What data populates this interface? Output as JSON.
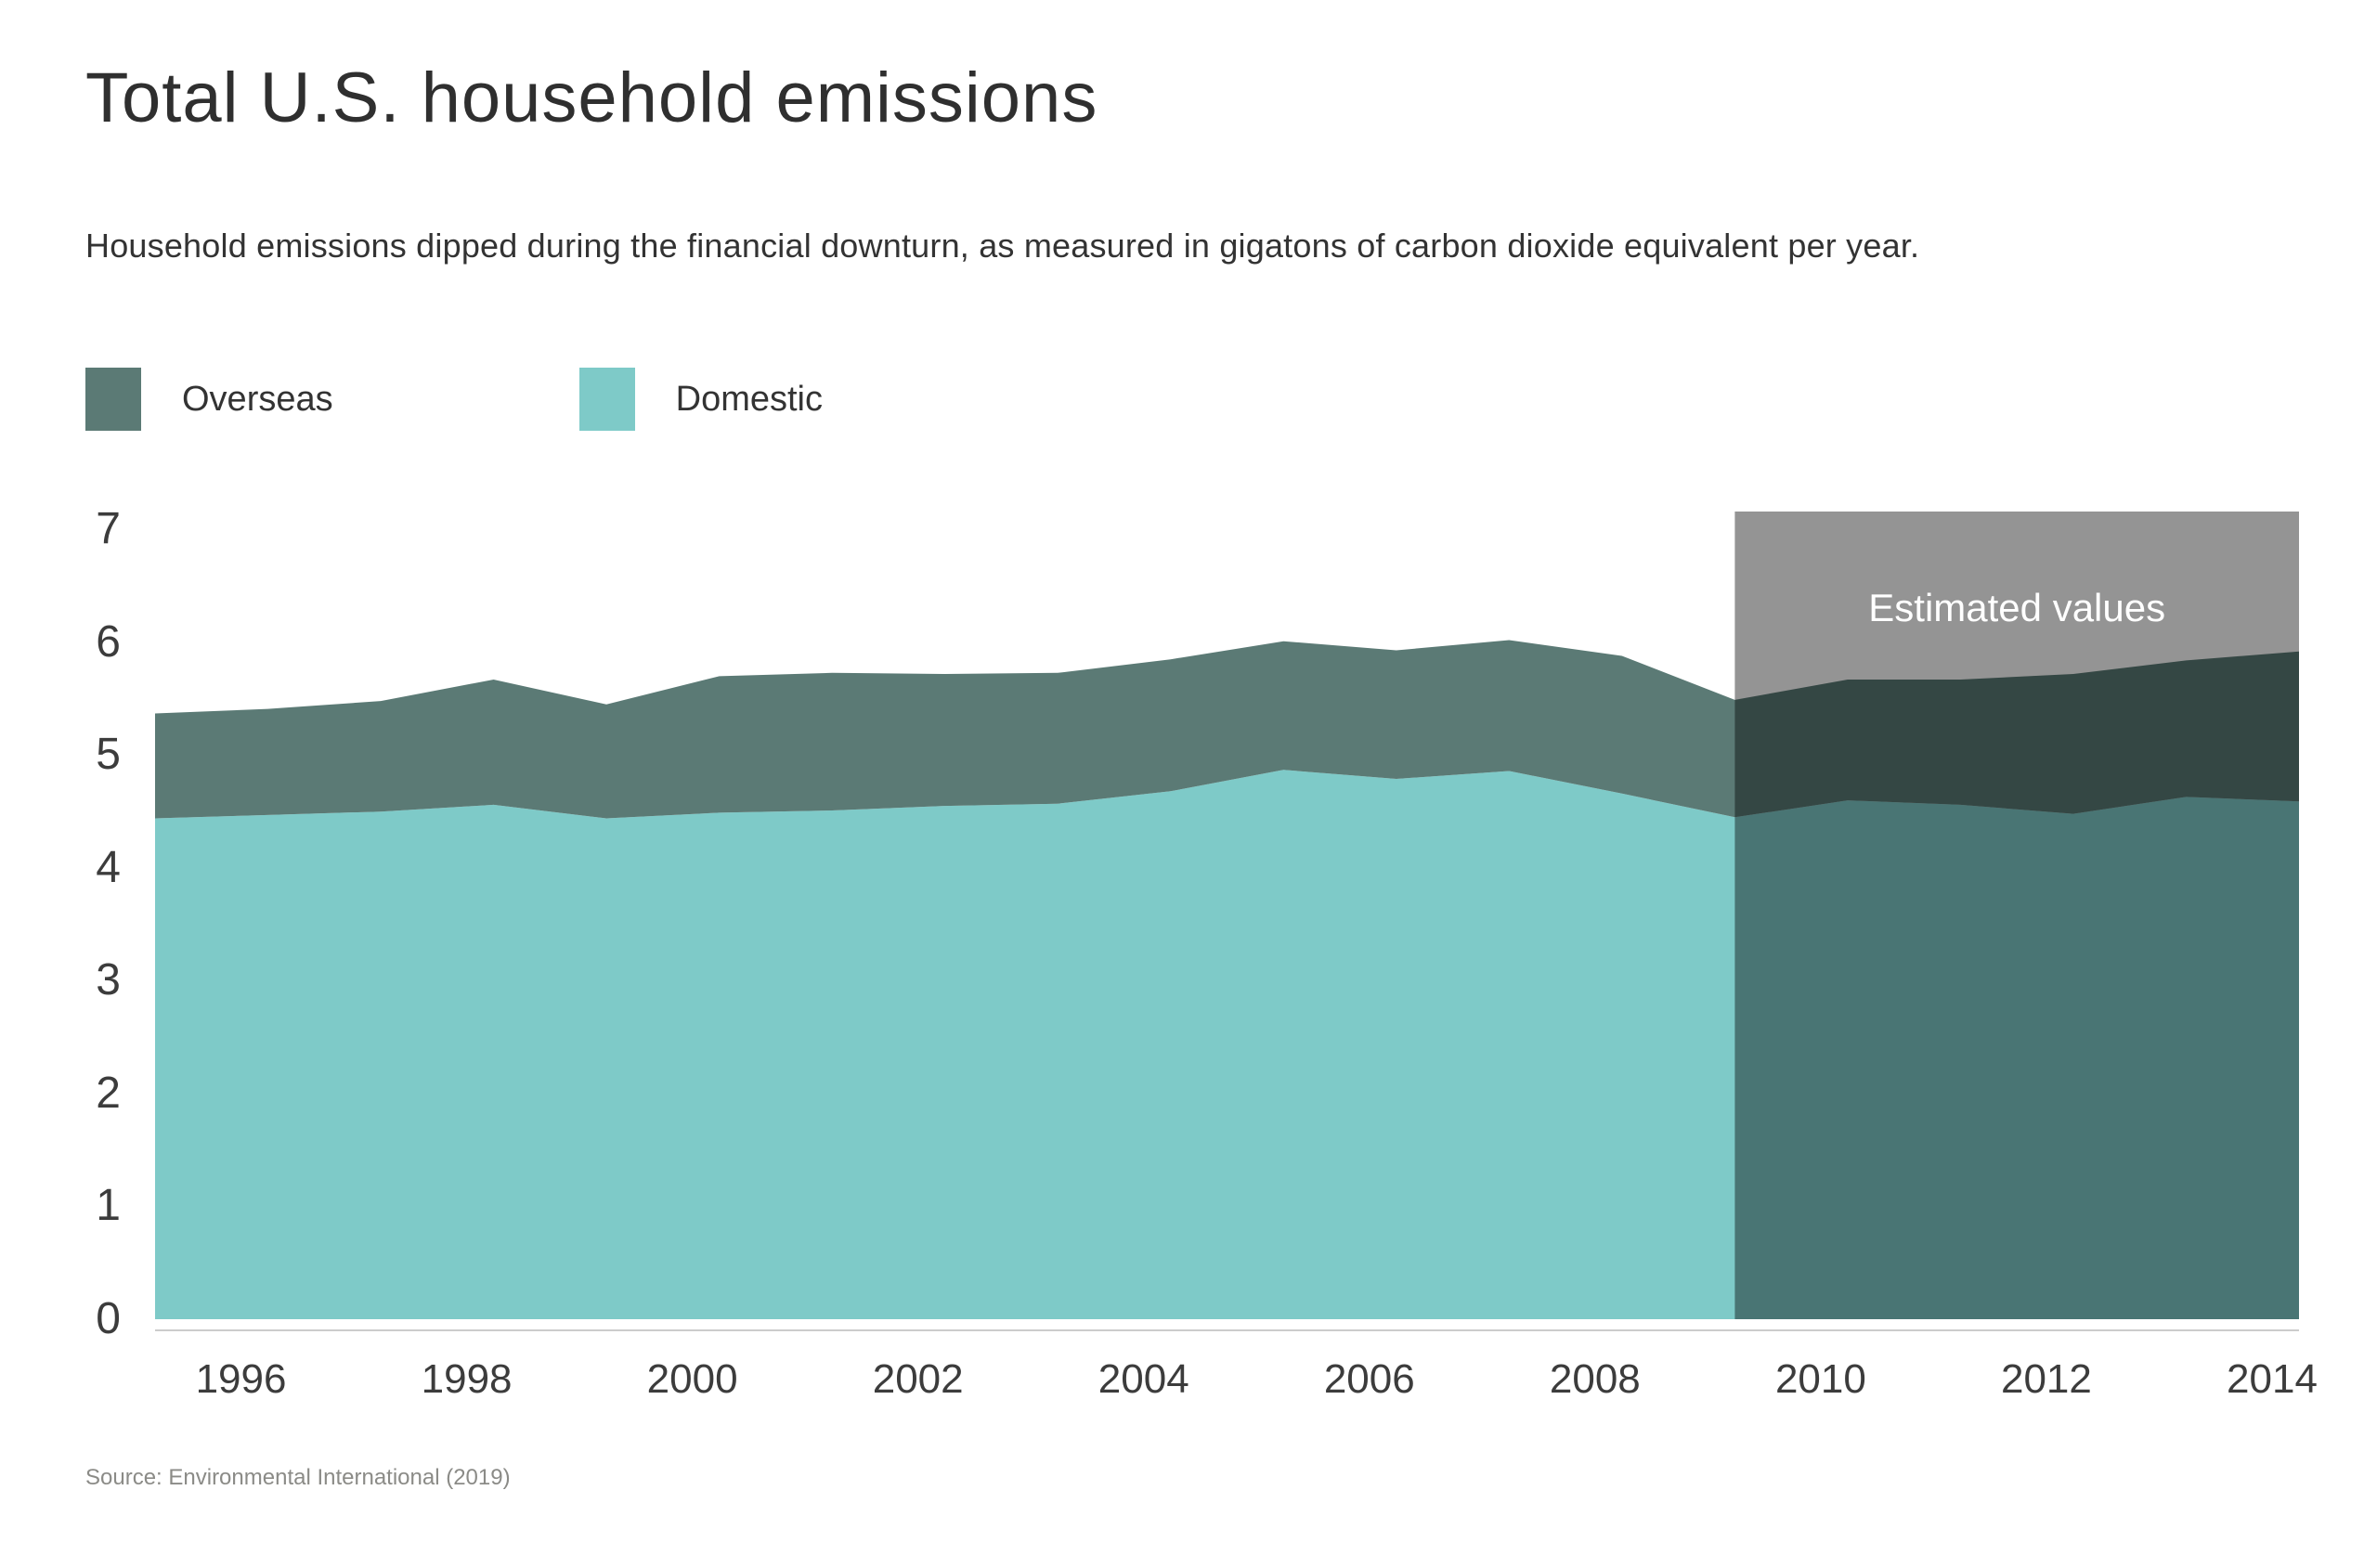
{
  "header": {
    "title": "Total U.S. household emissions",
    "subtitle": "Household emissions dipped during the financial downturn, as measured in gigatons of carbon dioxide equivalent per year."
  },
  "legend": {
    "items": [
      {
        "label": "Overseas",
        "color": "#5b7a75"
      },
      {
        "label": "Domestic",
        "color": "#7ecac8"
      }
    ]
  },
  "source": {
    "text": "Source: Environmental International (2019)"
  },
  "chart_data": {
    "type": "area",
    "stacked": true,
    "title": "Total U.S. household emissions",
    "xlabel": "",
    "ylabel": "",
    "x": [
      1995,
      1996,
      1997,
      1998,
      1999,
      2000,
      2001,
      2002,
      2003,
      2004,
      2005,
      2006,
      2007,
      2008,
      2009,
      2010,
      2011,
      2012,
      2013,
      2014
    ],
    "series": [
      {
        "name": "Domestic",
        "color": "#7ecac8",
        "values": [
          4.44,
          4.47,
          4.5,
          4.56,
          4.44,
          4.49,
          4.51,
          4.55,
          4.57,
          4.68,
          4.87,
          4.79,
          4.86,
          4.66,
          4.45,
          4.6,
          4.56,
          4.48,
          4.63,
          4.59
        ]
      },
      {
        "name": "Overseas",
        "color": "#5b7a75",
        "values": [
          0.93,
          0.94,
          0.98,
          1.11,
          1.01,
          1.21,
          1.22,
          1.17,
          1.16,
          1.17,
          1.14,
          1.14,
          1.16,
          1.22,
          1.04,
          1.07,
          1.11,
          1.24,
          1.21,
          1.33
        ]
      }
    ],
    "totals": [
      5.37,
      5.41,
      5.48,
      5.67,
      5.45,
      5.7,
      5.73,
      5.72,
      5.73,
      5.85,
      6.01,
      5.93,
      6.02,
      5.88,
      5.49,
      5.67,
      5.67,
      5.72,
      5.84,
      5.92
    ],
    "x_ticks": [
      1996,
      1998,
      2000,
      2002,
      2004,
      2006,
      2008,
      2010,
      2012,
      2014
    ],
    "y_ticks": [
      0,
      1,
      2,
      3,
      4,
      5,
      6,
      7
    ],
    "xlim": [
      1995,
      2014
    ],
    "ylim": [
      0,
      7.16
    ],
    "grid": false,
    "legend_position": "top-left",
    "estimated_region": {
      "from_x": 2009,
      "to_x": 2014,
      "label": "Estimated values",
      "overlay_color": "rgba(0,0,0,0.42)",
      "label_color": "#ffffff"
    }
  }
}
